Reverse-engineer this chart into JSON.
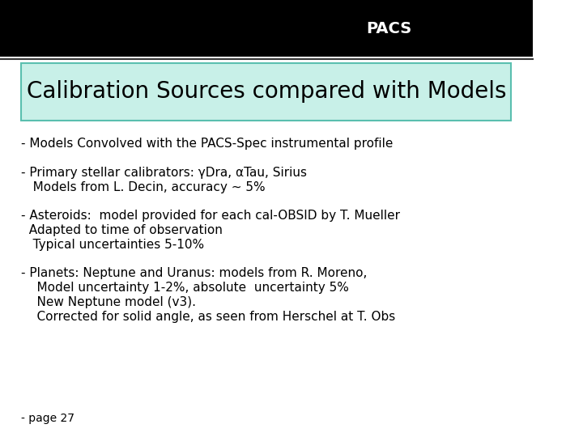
{
  "background_color": "#ffffff",
  "header_bar_color": "#000000",
  "header_bar_height": 0.13,
  "title_box_text": "Calibration Sources compared with Models",
  "title_box_bg": "#c8f0e8",
  "title_box_border": "#5abfaf",
  "title_fontsize": 20,
  "title_font_family": "DejaVu Sans",
  "body_lines": [
    "- Models Convolved with the PACS-Spec instrumental profile",
    "",
    "- Primary stellar calibrators: γDra, αTau, Sirius",
    "   Models from L. Decin, accuracy ~ 5%",
    "",
    "- Asteroids:  model provided for each cal-OBSID by T. Mueller",
    "  Adapted to time of observation",
    "   Typical uncertainties 5-10%",
    "",
    "- Planets: Neptune and Uranus: models from R. Moreno,",
    "    Model uncertainty 1-2%, absolute  uncertainty 5%",
    "    New Neptune model (v3).",
    "    Corrected for solid angle, as seen from Herschel at T. Obs"
  ],
  "body_fontsize": 11,
  "footer_text": "- page 27",
  "footer_fontsize": 10,
  "pacs_label": "PACS",
  "pacs_fontsize": 14
}
